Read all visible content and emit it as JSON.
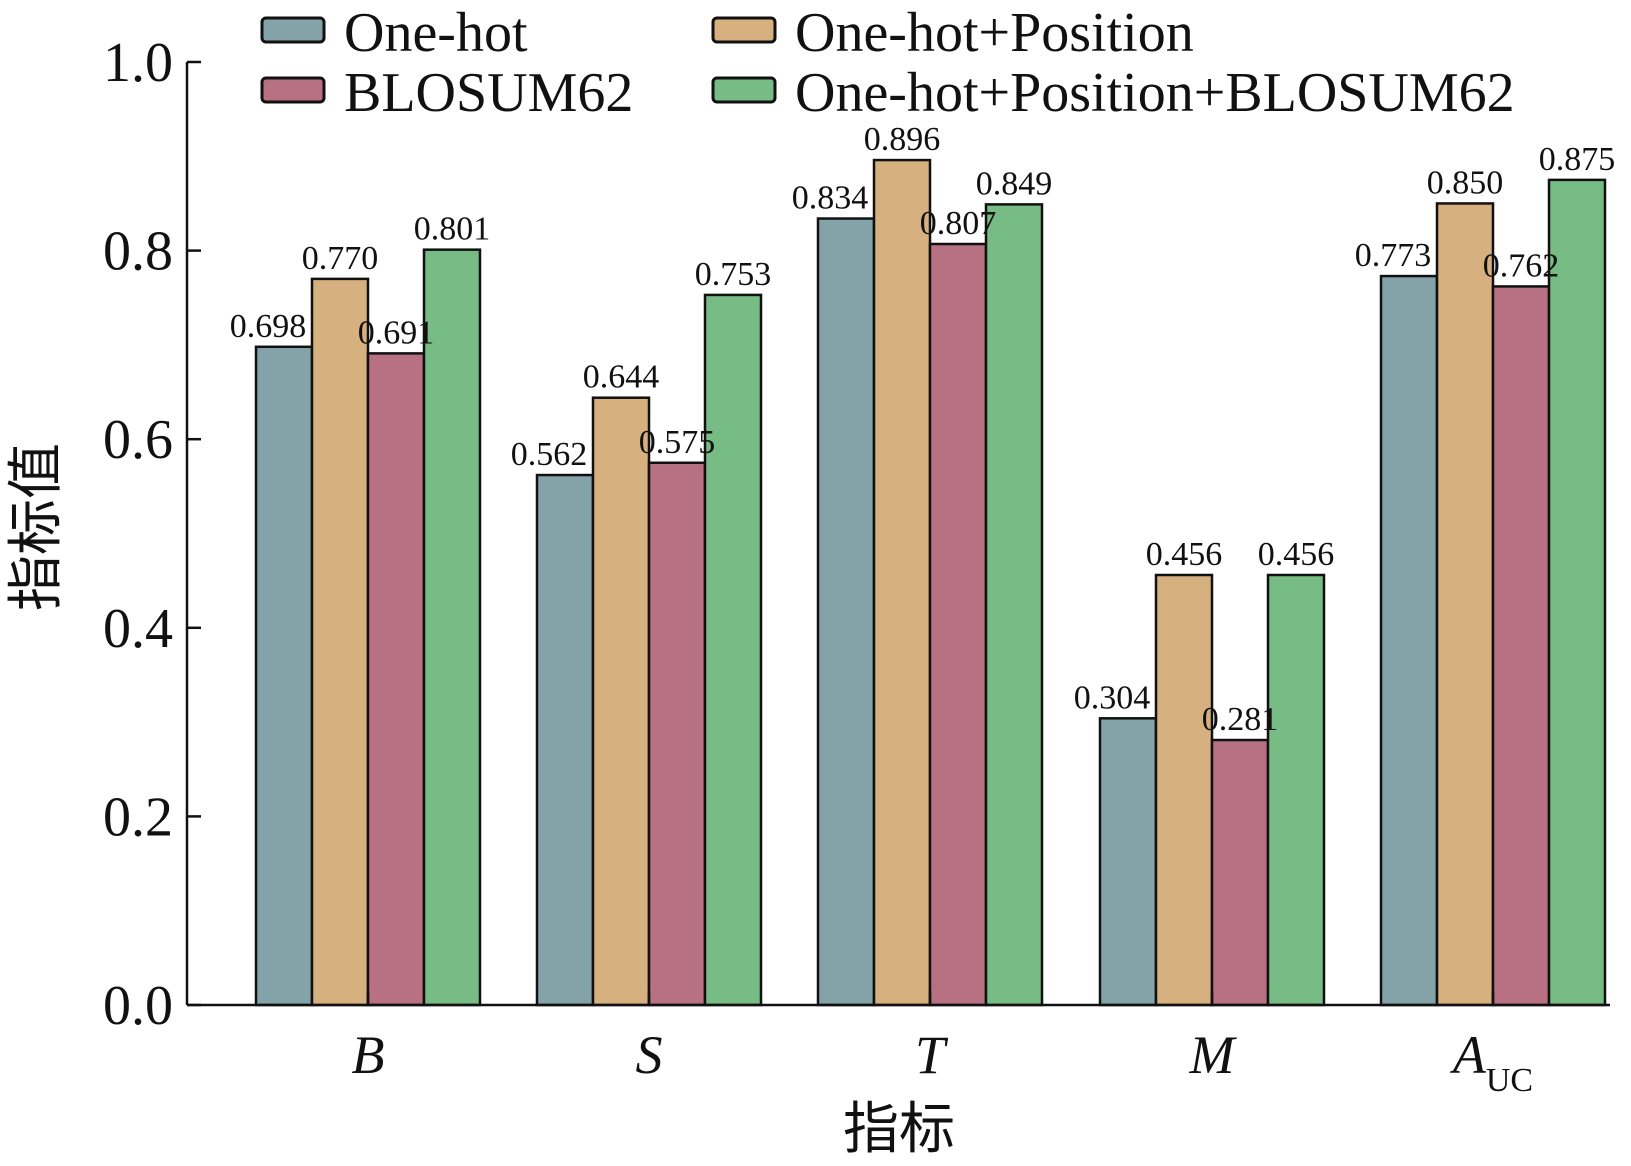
{
  "chart_data": {
    "type": "bar",
    "categories": [
      {
        "main": "B",
        "sub": ""
      },
      {
        "main": "S",
        "sub": ""
      },
      {
        "main": "T",
        "sub": ""
      },
      {
        "main": "M",
        "sub": ""
      },
      {
        "main": "A",
        "sub": "UC"
      }
    ],
    "series": [
      {
        "name": "One-hot",
        "color": "#84a3a9",
        "values": [
          0.698,
          0.562,
          0.834,
          0.304,
          0.773
        ]
      },
      {
        "name": "One-hot+Position",
        "color": "#d6b07e",
        "values": [
          0.77,
          0.644,
          0.896,
          0.456,
          0.85
        ]
      },
      {
        "name": "BLOSUM62",
        "color": "#b87182",
        "values": [
          0.691,
          0.575,
          0.807,
          0.281,
          0.762
        ]
      },
      {
        "name": "One-hot+Position+BLOSUM62",
        "color": "#76bc84",
        "values": [
          0.801,
          0.753,
          0.849,
          0.456,
          0.875
        ]
      }
    ],
    "data_labels": [
      [
        "0.698",
        "0.562",
        "0.834",
        "0.304",
        "0.773"
      ],
      [
        "0.770",
        "0.644",
        "0.896",
        "0.456",
        "0.850"
      ],
      [
        "0.691",
        "0.575",
        "0.807",
        "0.281",
        "0.762"
      ],
      [
        "0.801",
        "0.753",
        "0.849",
        "0.456",
        "0.875"
      ]
    ],
    "xlabel": "指标",
    "ylabel": "指标值",
    "ylim": [
      0,
      1.0
    ],
    "yticks": [
      "0.0",
      "0.2",
      "0.4",
      "0.6",
      "0.8",
      "1.0"
    ],
    "grid": false,
    "legend_position": "top"
  }
}
